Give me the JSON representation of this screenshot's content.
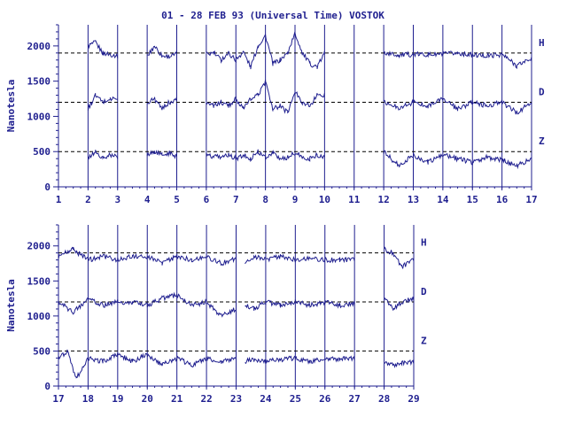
{
  "title": "01 - 28 FEB 93 (Universal Time) VOSTOK",
  "chart_data": [
    {
      "type": "line",
      "ylabel": "Nanotesla",
      "ylim": [
        0,
        2300
      ],
      "yticks": [
        0,
        500,
        1000,
        1500,
        2000
      ],
      "xlim": [
        1,
        17
      ],
      "xticks": [
        1,
        2,
        3,
        4,
        5,
        6,
        7,
        8,
        9,
        10,
        11,
        12,
        13,
        14,
        15,
        16,
        17
      ],
      "baselines": [
        {
          "name": "H",
          "value": 1900
        },
        {
          "name": "D",
          "value": 1200
        },
        {
          "name": "Z",
          "value": 500
        }
      ],
      "color": "#1f1f8f",
      "series": [
        {
          "name": "H",
          "base": 1900,
          "x": [
            2.0,
            2.25,
            2.5,
            2.75,
            3.0,
            4.0,
            4.25,
            4.5,
            4.75,
            5.0,
            6.0,
            6.25,
            6.5,
            6.75,
            7.0,
            7.25,
            7.5,
            7.75,
            8.0,
            8.25,
            8.5,
            8.75,
            9.0,
            9.25,
            9.5,
            9.75,
            10.0,
            12.0,
            12.5,
            13.0,
            13.5,
            14.0,
            14.5,
            15.0,
            15.5,
            16.0,
            16.5,
            17.0
          ],
          "values": [
            2000,
            2050,
            1900,
            1880,
            1860,
            1850,
            2000,
            1860,
            1850,
            1880,
            1880,
            1900,
            1800,
            1900,
            1800,
            1920,
            1700,
            2000,
            2150,
            1750,
            1800,
            1900,
            2180,
            1900,
            1750,
            1700,
            1900,
            1900,
            1870,
            1880,
            1880,
            1880,
            1900,
            1870,
            1860,
            1880,
            1720,
            1830
          ],
          "gaps_after": [
            3.0,
            5.0,
            10.0
          ]
        },
        {
          "name": "D",
          "base": 1200,
          "x": [
            2.0,
            2.25,
            2.5,
            2.75,
            3.0,
            4.0,
            4.25,
            4.5,
            4.75,
            5.0,
            6.0,
            6.25,
            6.5,
            6.75,
            7.0,
            7.25,
            7.5,
            7.75,
            8.0,
            8.25,
            8.5,
            8.75,
            9.0,
            9.25,
            9.5,
            9.75,
            10.0,
            12.0,
            12.5,
            13.0,
            13.5,
            14.0,
            14.5,
            15.0,
            15.5,
            16.0,
            16.5,
            17.0
          ],
          "values": [
            1100,
            1300,
            1200,
            1250,
            1250,
            1200,
            1250,
            1100,
            1200,
            1250,
            1200,
            1150,
            1200,
            1150,
            1250,
            1100,
            1250,
            1300,
            1500,
            1100,
            1150,
            1050,
            1350,
            1200,
            1150,
            1300,
            1300,
            1200,
            1120,
            1200,
            1150,
            1250,
            1100,
            1200,
            1150,
            1200,
            1050,
            1200
          ],
          "gaps_after": [
            3.0,
            5.0,
            10.0
          ]
        },
        {
          "name": "Z",
          "base": 500,
          "x": [
            2.0,
            2.25,
            2.5,
            2.75,
            3.0,
            4.0,
            4.25,
            4.5,
            4.75,
            5.0,
            6.0,
            6.25,
            6.5,
            6.75,
            7.0,
            7.25,
            7.5,
            7.75,
            8.0,
            8.25,
            8.5,
            8.75,
            9.0,
            9.25,
            9.5,
            9.75,
            10.0,
            12.0,
            12.5,
            13.0,
            13.5,
            14.0,
            14.5,
            15.0,
            15.5,
            16.0,
            16.5,
            17.0
          ],
          "values": [
            400,
            500,
            400,
            450,
            420,
            450,
            500,
            450,
            480,
            430,
            450,
            420,
            430,
            450,
            400,
            450,
            400,
            500,
            420,
            480,
            400,
            420,
            480,
            420,
            400,
            450,
            430,
            500,
            300,
            450,
            350,
            450,
            400,
            350,
            420,
            380,
            300,
            400
          ],
          "gaps_after": [
            3.0,
            5.0,
            10.0
          ]
        }
      ]
    },
    {
      "type": "line",
      "ylabel": "Nanotesla",
      "ylim": [
        0,
        2300
      ],
      "yticks": [
        0,
        500,
        1000,
        1500,
        2000
      ],
      "xlim": [
        17,
        29
      ],
      "xticks": [
        17,
        18,
        19,
        20,
        21,
        22,
        23,
        24,
        25,
        26,
        27,
        28,
        29
      ],
      "baselines": [
        {
          "name": "H",
          "value": 1900
        },
        {
          "name": "D",
          "value": 1200
        },
        {
          "name": "Z",
          "value": 500
        }
      ],
      "color": "#1f1f8f",
      "series": [
        {
          "name": "H",
          "base": 1900,
          "x": [
            17.0,
            17.5,
            18.0,
            18.5,
            19.0,
            19.5,
            20.0,
            20.5,
            21.0,
            21.5,
            22.0,
            22.5,
            23.0,
            23.3,
            23.6,
            24.0,
            24.5,
            25.0,
            25.5,
            26.0,
            26.5,
            27.0,
            28.0,
            28.3,
            28.6,
            29.0
          ],
          "values": [
            1850,
            1950,
            1800,
            1850,
            1800,
            1850,
            1850,
            1750,
            1850,
            1800,
            1850,
            1750,
            1820,
            1750,
            1850,
            1800,
            1850,
            1800,
            1830,
            1800,
            1800,
            1800,
            1950,
            1900,
            1700,
            1800
          ],
          "gaps_after": [
            23.0,
            27.0
          ]
        },
        {
          "name": "D",
          "base": 1200,
          "x": [
            17.0,
            17.5,
            18.0,
            18.5,
            19.0,
            19.5,
            20.0,
            20.5,
            21.0,
            21.5,
            22.0,
            22.5,
            23.0,
            23.3,
            23.6,
            24.0,
            24.5,
            25.0,
            25.5,
            26.0,
            26.5,
            27.0,
            28.0,
            28.3,
            28.6,
            29.0
          ],
          "values": [
            1200,
            1050,
            1250,
            1150,
            1200,
            1200,
            1150,
            1250,
            1300,
            1150,
            1200,
            1000,
            1100,
            1150,
            1100,
            1200,
            1150,
            1200,
            1150,
            1200,
            1150,
            1180,
            1250,
            1100,
            1200,
            1250
          ],
          "gaps_after": [
            23.0,
            27.0
          ]
        },
        {
          "name": "Z",
          "base": 500,
          "x": [
            17.0,
            17.3,
            17.6,
            18.0,
            18.5,
            19.0,
            19.5,
            20.0,
            20.5,
            21.0,
            21.5,
            22.0,
            22.5,
            23.0,
            23.3,
            23.6,
            24.0,
            24.5,
            25.0,
            25.5,
            26.0,
            26.5,
            27.0,
            28.0,
            28.3,
            28.6,
            29.0
          ],
          "values": [
            400,
            500,
            100,
            400,
            350,
            450,
            350,
            450,
            300,
            400,
            300,
            400,
            350,
            400,
            350,
            380,
            350,
            380,
            400,
            350,
            400,
            380,
            400,
            350,
            300,
            320,
            350
          ],
          "gaps_after": [
            23.0,
            27.0
          ]
        }
      ]
    }
  ]
}
